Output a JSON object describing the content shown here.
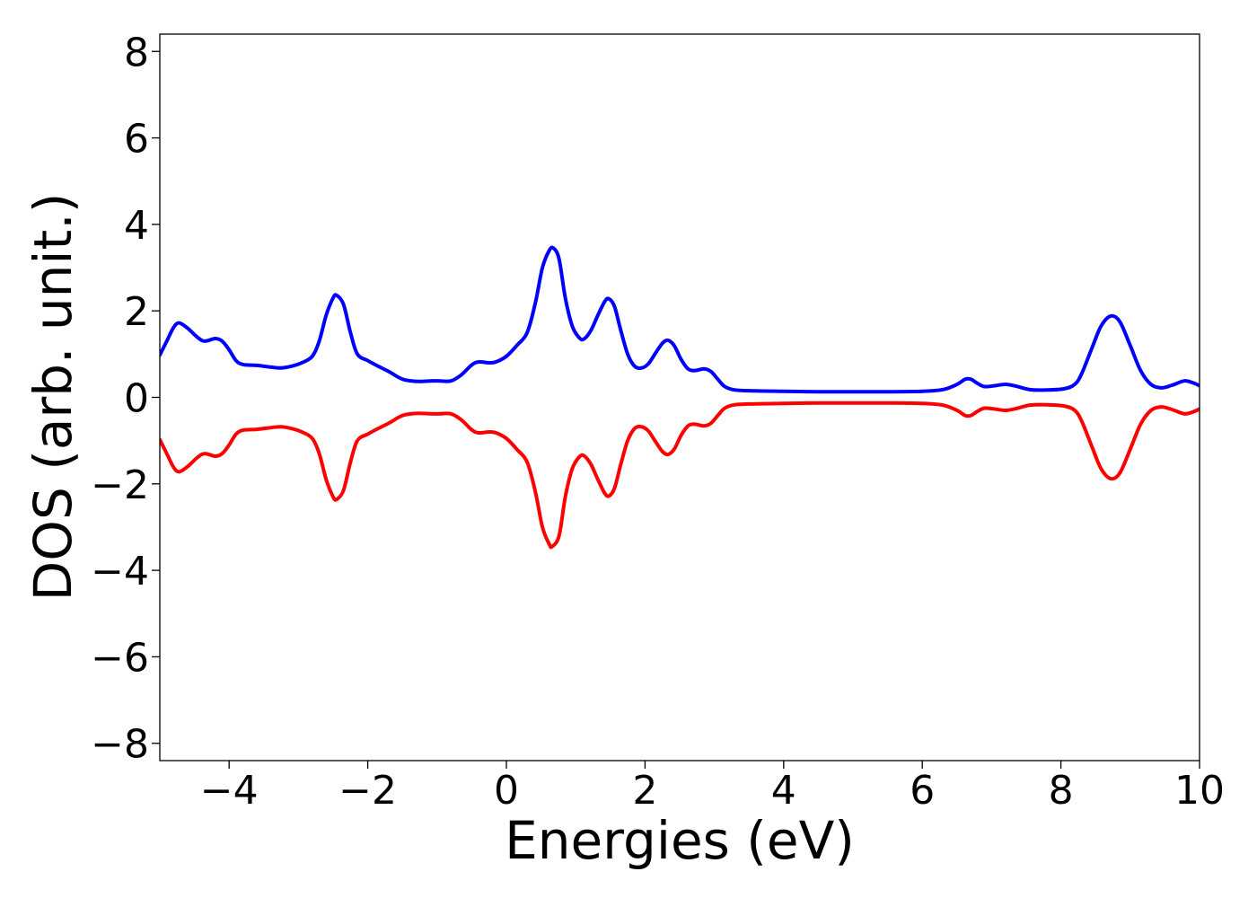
{
  "chart_data": {
    "type": "line",
    "title": "",
    "xlabel": "Energies (eV)",
    "ylabel": "DOS (arb. unit.)",
    "xlim": [
      -5,
      10
    ],
    "ylim": [
      -8.4,
      8.4
    ],
    "xticks": [
      -4,
      -2,
      0,
      2,
      4,
      6,
      8,
      10
    ],
    "xtick_labels": [
      "−4",
      "−2",
      "0",
      "2",
      "4",
      "6",
      "8",
      "10"
    ],
    "yticks": [
      -8,
      -6,
      -4,
      -2,
      0,
      2,
      4,
      6,
      8
    ],
    "ytick_labels": [
      "−8",
      "−6",
      "−4",
      "−2",
      "0",
      "2",
      "4",
      "6",
      "8"
    ],
    "grid": false,
    "legend": "none",
    "series": [
      {
        "color": "#0000ff",
        "points": [
          [
            -5.0,
            0.98
          ],
          [
            -4.9,
            1.3
          ],
          [
            -4.8,
            1.62
          ],
          [
            -4.72,
            1.72
          ],
          [
            -4.6,
            1.6
          ],
          [
            -4.45,
            1.38
          ],
          [
            -4.35,
            1.3
          ],
          [
            -4.2,
            1.36
          ],
          [
            -4.1,
            1.3
          ],
          [
            -4.0,
            1.1
          ],
          [
            -3.9,
            0.85
          ],
          [
            -3.8,
            0.76
          ],
          [
            -3.6,
            0.74
          ],
          [
            -3.4,
            0.7
          ],
          [
            -3.25,
            0.68
          ],
          [
            -3.1,
            0.72
          ],
          [
            -2.95,
            0.8
          ],
          [
            -2.8,
            0.95
          ],
          [
            -2.7,
            1.3
          ],
          [
            -2.6,
            1.9
          ],
          [
            -2.5,
            2.3
          ],
          [
            -2.45,
            2.36
          ],
          [
            -2.35,
            2.15
          ],
          [
            -2.25,
            1.5
          ],
          [
            -2.15,
            1.0
          ],
          [
            -2.0,
            0.85
          ],
          [
            -1.85,
            0.72
          ],
          [
            -1.7,
            0.6
          ],
          [
            -1.5,
            0.42
          ],
          [
            -1.3,
            0.37
          ],
          [
            -1.1,
            0.38
          ],
          [
            -0.95,
            0.38
          ],
          [
            -0.8,
            0.38
          ],
          [
            -0.65,
            0.52
          ],
          [
            -0.5,
            0.75
          ],
          [
            -0.4,
            0.82
          ],
          [
            -0.25,
            0.8
          ],
          [
            -0.15,
            0.82
          ],
          [
            0.0,
            0.95
          ],
          [
            0.15,
            1.2
          ],
          [
            0.3,
            1.5
          ],
          [
            0.42,
            2.2
          ],
          [
            0.52,
            3.0
          ],
          [
            0.62,
            3.4
          ],
          [
            0.68,
            3.45
          ],
          [
            0.76,
            3.2
          ],
          [
            0.85,
            2.3
          ],
          [
            0.95,
            1.65
          ],
          [
            1.05,
            1.38
          ],
          [
            1.12,
            1.35
          ],
          [
            1.22,
            1.55
          ],
          [
            1.32,
            1.9
          ],
          [
            1.42,
            2.22
          ],
          [
            1.48,
            2.28
          ],
          [
            1.56,
            2.1
          ],
          [
            1.65,
            1.55
          ],
          [
            1.75,
            1.0
          ],
          [
            1.85,
            0.72
          ],
          [
            1.95,
            0.68
          ],
          [
            2.05,
            0.78
          ],
          [
            2.15,
            1.02
          ],
          [
            2.25,
            1.25
          ],
          [
            2.33,
            1.32
          ],
          [
            2.42,
            1.2
          ],
          [
            2.52,
            0.88
          ],
          [
            2.62,
            0.66
          ],
          [
            2.72,
            0.62
          ],
          [
            2.85,
            0.66
          ],
          [
            2.95,
            0.6
          ],
          [
            3.05,
            0.42
          ],
          [
            3.15,
            0.25
          ],
          [
            3.3,
            0.17
          ],
          [
            3.6,
            0.15
          ],
          [
            4.0,
            0.14
          ],
          [
            4.5,
            0.13
          ],
          [
            5.0,
            0.13
          ],
          [
            5.5,
            0.13
          ],
          [
            6.0,
            0.14
          ],
          [
            6.3,
            0.18
          ],
          [
            6.5,
            0.3
          ],
          [
            6.62,
            0.42
          ],
          [
            6.7,
            0.42
          ],
          [
            6.8,
            0.32
          ],
          [
            6.9,
            0.25
          ],
          [
            7.05,
            0.27
          ],
          [
            7.2,
            0.3
          ],
          [
            7.35,
            0.26
          ],
          [
            7.55,
            0.18
          ],
          [
            7.8,
            0.17
          ],
          [
            8.05,
            0.2
          ],
          [
            8.2,
            0.3
          ],
          [
            8.3,
            0.55
          ],
          [
            8.45,
            1.15
          ],
          [
            8.58,
            1.65
          ],
          [
            8.72,
            1.88
          ],
          [
            8.85,
            1.75
          ],
          [
            9.0,
            1.2
          ],
          [
            9.15,
            0.62
          ],
          [
            9.3,
            0.3
          ],
          [
            9.45,
            0.22
          ],
          [
            9.6,
            0.28
          ],
          [
            9.78,
            0.38
          ],
          [
            9.9,
            0.34
          ],
          [
            10.0,
            0.27
          ]
        ]
      },
      {
        "color": "#ff0000",
        "points": [
          [
            -5.0,
            -0.98
          ],
          [
            -4.9,
            -1.3
          ],
          [
            -4.8,
            -1.62
          ],
          [
            -4.72,
            -1.72
          ],
          [
            -4.6,
            -1.6
          ],
          [
            -4.45,
            -1.38
          ],
          [
            -4.35,
            -1.3
          ],
          [
            -4.2,
            -1.36
          ],
          [
            -4.1,
            -1.3
          ],
          [
            -4.0,
            -1.1
          ],
          [
            -3.9,
            -0.85
          ],
          [
            -3.8,
            -0.76
          ],
          [
            -3.6,
            -0.74
          ],
          [
            -3.4,
            -0.7
          ],
          [
            -3.25,
            -0.68
          ],
          [
            -3.1,
            -0.72
          ],
          [
            -2.95,
            -0.8
          ],
          [
            -2.8,
            -0.95
          ],
          [
            -2.7,
            -1.3
          ],
          [
            -2.6,
            -1.9
          ],
          [
            -2.5,
            -2.3
          ],
          [
            -2.45,
            -2.36
          ],
          [
            -2.35,
            -2.15
          ],
          [
            -2.25,
            -1.5
          ],
          [
            -2.15,
            -1.0
          ],
          [
            -2.0,
            -0.85
          ],
          [
            -1.85,
            -0.72
          ],
          [
            -1.7,
            -0.6
          ],
          [
            -1.5,
            -0.42
          ],
          [
            -1.3,
            -0.37
          ],
          [
            -1.1,
            -0.38
          ],
          [
            -0.95,
            -0.38
          ],
          [
            -0.8,
            -0.38
          ],
          [
            -0.65,
            -0.52
          ],
          [
            -0.5,
            -0.75
          ],
          [
            -0.4,
            -0.82
          ],
          [
            -0.25,
            -0.8
          ],
          [
            -0.15,
            -0.82
          ],
          [
            0.0,
            -0.95
          ],
          [
            0.15,
            -1.2
          ],
          [
            0.3,
            -1.5
          ],
          [
            0.42,
            -2.2
          ],
          [
            0.52,
            -3.0
          ],
          [
            0.62,
            -3.4
          ],
          [
            0.66,
            -3.45
          ],
          [
            0.76,
            -3.2
          ],
          [
            0.85,
            -2.3
          ],
          [
            0.95,
            -1.65
          ],
          [
            1.05,
            -1.38
          ],
          [
            1.12,
            -1.35
          ],
          [
            1.22,
            -1.55
          ],
          [
            1.32,
            -1.9
          ],
          [
            1.42,
            -2.22
          ],
          [
            1.48,
            -2.28
          ],
          [
            1.56,
            -2.1
          ],
          [
            1.65,
            -1.55
          ],
          [
            1.75,
            -1.0
          ],
          [
            1.85,
            -0.72
          ],
          [
            1.95,
            -0.68
          ],
          [
            2.05,
            -0.78
          ],
          [
            2.15,
            -1.02
          ],
          [
            2.25,
            -1.25
          ],
          [
            2.33,
            -1.32
          ],
          [
            2.42,
            -1.2
          ],
          [
            2.52,
            -0.88
          ],
          [
            2.62,
            -0.66
          ],
          [
            2.72,
            -0.62
          ],
          [
            2.85,
            -0.66
          ],
          [
            2.95,
            -0.6
          ],
          [
            3.05,
            -0.42
          ],
          [
            3.15,
            -0.25
          ],
          [
            3.3,
            -0.17
          ],
          [
            3.6,
            -0.15
          ],
          [
            4.0,
            -0.14
          ],
          [
            4.5,
            -0.13
          ],
          [
            5.0,
            -0.13
          ],
          [
            5.5,
            -0.13
          ],
          [
            6.0,
            -0.14
          ],
          [
            6.3,
            -0.18
          ],
          [
            6.5,
            -0.3
          ],
          [
            6.62,
            -0.42
          ],
          [
            6.7,
            -0.42
          ],
          [
            6.8,
            -0.32
          ],
          [
            6.9,
            -0.25
          ],
          [
            7.05,
            -0.27
          ],
          [
            7.2,
            -0.3
          ],
          [
            7.35,
            -0.26
          ],
          [
            7.55,
            -0.18
          ],
          [
            7.8,
            -0.17
          ],
          [
            8.05,
            -0.2
          ],
          [
            8.2,
            -0.3
          ],
          [
            8.3,
            -0.55
          ],
          [
            8.45,
            -1.15
          ],
          [
            8.58,
            -1.65
          ],
          [
            8.72,
            -1.88
          ],
          [
            8.85,
            -1.75
          ],
          [
            9.0,
            -1.2
          ],
          [
            9.15,
            -0.62
          ],
          [
            9.3,
            -0.3
          ],
          [
            9.45,
            -0.22
          ],
          [
            9.6,
            -0.28
          ],
          [
            9.78,
            -0.38
          ],
          [
            9.9,
            -0.34
          ],
          [
            10.0,
            -0.27
          ]
        ]
      }
    ]
  }
}
